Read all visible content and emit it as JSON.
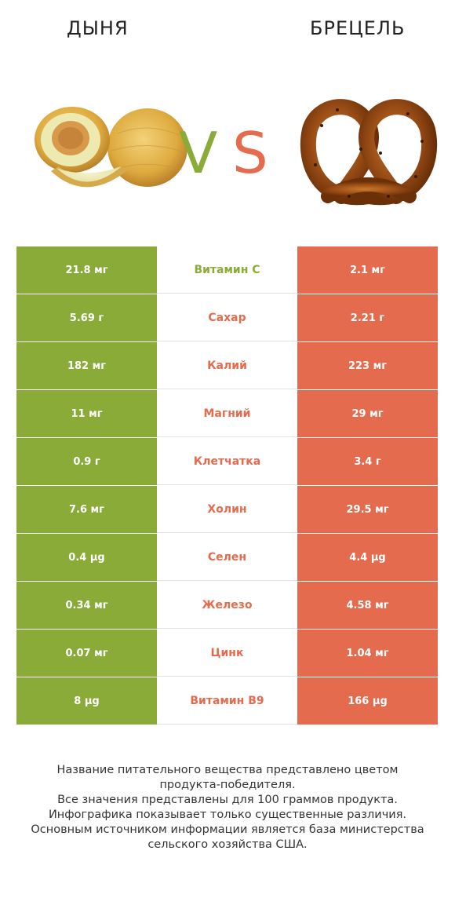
{
  "header": {
    "left_title": "ДЫНЯ",
    "right_title": "БРЕЦЕЛЬ",
    "vs_v": "V",
    "vs_s": "S"
  },
  "icons": [
    "melon-image",
    "pretzel-image"
  ],
  "colors": {
    "left": "#8aab38",
    "right": "#e46b4e"
  },
  "chart_data": {
    "type": "table",
    "columns": [
      "ДЫНЯ",
      "",
      "БРЕЦЕЛЬ"
    ],
    "rows": [
      {
        "left": "21.8 мг",
        "nutrient": "Витамин C",
        "right": "2.1 мг",
        "winner": "left"
      },
      {
        "left": "5.69 г",
        "nutrient": "Сахар",
        "right": "2.21 г",
        "winner": "right"
      },
      {
        "left": "182 мг",
        "nutrient": "Калий",
        "right": "223 мг",
        "winner": "right"
      },
      {
        "left": "11 мг",
        "nutrient": "Магний",
        "right": "29 мг",
        "winner": "right"
      },
      {
        "left": "0.9 г",
        "nutrient": "Клетчатка",
        "right": "3.4 г",
        "winner": "right"
      },
      {
        "left": "7.6 мг",
        "nutrient": "Холин",
        "right": "29.5 мг",
        "winner": "right"
      },
      {
        "left": "0.4 µg",
        "nutrient": "Селен",
        "right": "4.4 µg",
        "winner": "right"
      },
      {
        "left": "0.34 мг",
        "nutrient": "Железо",
        "right": "4.58 мг",
        "winner": "right"
      },
      {
        "left": "0.07 мг",
        "nutrient": "Цинк",
        "right": "1.04 мг",
        "winner": "right"
      },
      {
        "left": "8 µg",
        "nutrient": "Витамин B9",
        "right": "166 µg",
        "winner": "right"
      }
    ]
  },
  "footer": {
    "lines": [
      "Название питательного вещества представлено цветом",
      "продукта-победителя.",
      "Все значения представлены для 100 граммов продукта.",
      "Инфографика показывает только существенные различия.",
      "Основным источником информации является база министерства",
      "сельского хозяйства США."
    ]
  }
}
